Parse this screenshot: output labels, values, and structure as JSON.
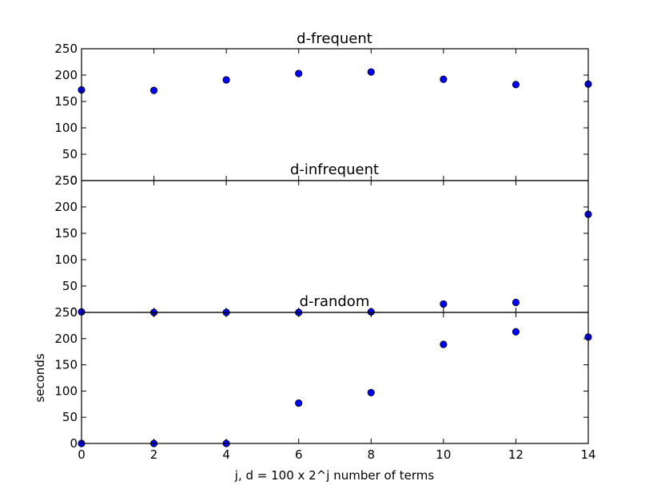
{
  "chart_data": [
    {
      "type": "scatter",
      "title": "d-frequent",
      "xlabel": "",
      "ylabel": "",
      "x": [
        0,
        2,
        4,
        6,
        8,
        10,
        12,
        14
      ],
      "y": [
        172,
        171,
        191,
        203,
        206,
        192,
        182,
        183
      ],
      "xlim": [
        0,
        14
      ],
      "ylim": [
        0,
        250
      ],
      "yticks": [
        0,
        50,
        100,
        150,
        200,
        250
      ],
      "marker_color": "#0000ff",
      "grid": false
    },
    {
      "type": "scatter",
      "title": "d-infrequent",
      "xlabel": "",
      "ylabel": "",
      "x": [
        0,
        2,
        4,
        6,
        8,
        10,
        12,
        14
      ],
      "y": [
        1,
        0,
        0,
        0,
        1,
        16,
        19,
        186
      ],
      "xlim": [
        0,
        14
      ],
      "ylim": [
        0,
        250
      ],
      "yticks": [
        0,
        50,
        100,
        150,
        200,
        250
      ],
      "marker_color": "#0000ff",
      "grid": false
    },
    {
      "type": "scatter",
      "title": "d-random",
      "xlabel": "j, d = 100 x 2^j number of terms",
      "ylabel": "seconds",
      "x": [
        0,
        2,
        4,
        6,
        8,
        10,
        12,
        14
      ],
      "y": [
        0,
        0,
        0,
        77,
        97,
        189,
        213,
        203
      ],
      "xlim": [
        0,
        14
      ],
      "ylim": [
        0,
        250
      ],
      "xticks": [
        0,
        2,
        4,
        6,
        8,
        10,
        12,
        14
      ],
      "yticks": [
        0,
        50,
        100,
        150,
        200,
        250
      ],
      "marker_color": "#0000ff",
      "grid": false
    }
  ]
}
